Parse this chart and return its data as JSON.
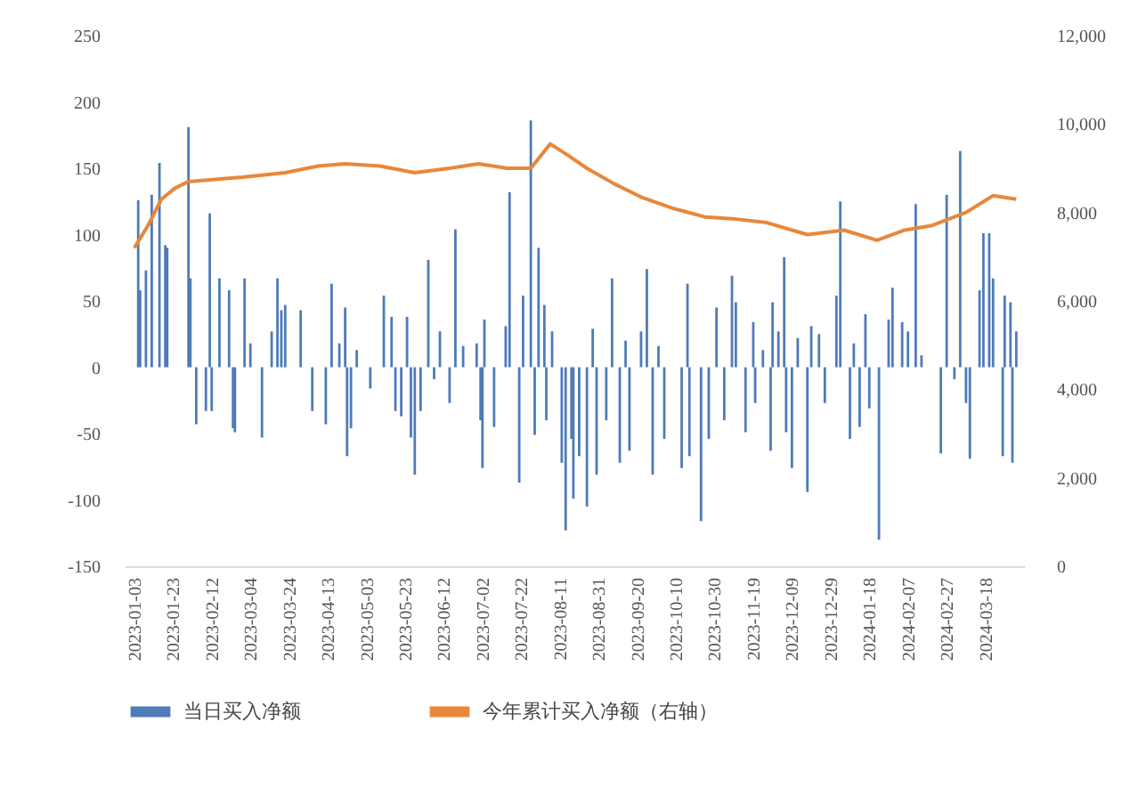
{
  "chart_data": {
    "type": "bar",
    "legend": "bottom",
    "xlim": [
      "2022-12-29",
      "2024-04-07"
    ],
    "xticks": [
      "2023-01-03",
      "2023-01-23",
      "2023-02-12",
      "2023-03-04",
      "2023-03-24",
      "2023-04-13",
      "2023-05-03",
      "2023-05-23",
      "2023-06-12",
      "2023-07-02",
      "2023-07-22",
      "2023-08-11",
      "2023-08-31",
      "2023-09-20",
      "2023-10-10",
      "2023-10-30",
      "2023-11-19",
      "2023-12-09",
      "2023-12-29",
      "2024-01-18",
      "2024-02-07",
      "2024-02-27",
      "2024-03-18"
    ],
    "ylim": [
      -150,
      250
    ],
    "yticks": [
      -150,
      -100,
      -50,
      0,
      50,
      100,
      150,
      200,
      250
    ],
    "y2lim": [
      0,
      12000
    ],
    "y2ticks": [
      0,
      {
        "value": 2000,
        "label": "2,000"
      },
      {
        "value": 4000,
        "label": "4,000"
      },
      {
        "value": 6000,
        "label": "6,000"
      },
      {
        "value": 8000,
        "label": "8,000"
      },
      {
        "value": 10000,
        "label": "10,000"
      },
      {
        "value": 12000,
        "label": "12,000"
      }
    ],
    "series": [
      {
        "name": "当日买入净额",
        "type": "bar",
        "color": "#4f7bb8",
        "x": [
          "2023-01-05",
          "2023-01-06",
          "2023-01-09",
          "2023-01-12",
          "2023-01-16",
          "2023-01-19",
          "2023-01-20",
          "2023-01-31",
          "2023-02-01",
          "2023-02-04",
          "2023-02-09",
          "2023-02-11",
          "2023-02-12",
          "2023-02-16",
          "2023-02-21",
          "2023-02-23",
          "2023-02-24",
          "2023-03-01",
          "2023-03-04",
          "2023-03-10",
          "2023-03-15",
          "2023-03-18",
          "2023-03-20",
          "2023-03-22",
          "2023-03-30",
          "2023-04-05",
          "2023-04-12",
          "2023-04-15",
          "2023-04-19",
          "2023-04-22",
          "2023-04-23",
          "2023-04-25",
          "2023-04-28",
          "2023-05-05",
          "2023-05-12",
          "2023-05-16",
          "2023-05-18",
          "2023-05-21",
          "2023-05-24",
          "2023-05-26",
          "2023-05-28",
          "2023-05-31",
          "2023-06-04",
          "2023-06-07",
          "2023-06-10",
          "2023-06-15",
          "2023-06-18",
          "2023-06-22",
          "2023-06-29",
          "2023-07-01",
          "2023-07-02",
          "2023-07-03",
          "2023-07-08",
          "2023-07-14",
          "2023-07-16",
          "2023-07-21",
          "2023-07-23",
          "2023-07-27",
          "2023-07-29",
          "2023-07-31",
          "2023-08-03",
          "2023-08-04",
          "2023-08-07",
          "2023-08-12",
          "2023-08-14",
          "2023-08-17",
          "2023-08-18",
          "2023-08-21",
          "2023-08-25",
          "2023-08-28",
          "2023-08-30",
          "2023-09-04",
          "2023-09-07",
          "2023-09-11",
          "2023-09-14",
          "2023-09-16",
          "2023-09-22",
          "2023-09-25",
          "2023-09-28",
          "2023-10-01",
          "2023-10-04",
          "2023-10-13",
          "2023-10-16",
          "2023-10-17",
          "2023-10-23",
          "2023-10-27",
          "2023-10-31",
          "2023-11-04",
          "2023-11-08",
          "2023-11-10",
          "2023-11-15",
          "2023-11-19",
          "2023-11-20",
          "2023-11-24",
          "2023-11-28",
          "2023-11-29",
          "2023-12-02",
          "2023-12-05",
          "2023-12-06",
          "2023-12-09",
          "2023-12-12",
          "2023-12-17",
          "2023-12-19",
          "2023-12-23",
          "2023-12-26",
          "2024-01-01",
          "2024-01-03",
          "2024-01-08",
          "2024-01-10",
          "2024-01-13",
          "2024-01-16",
          "2024-01-18",
          "2024-01-23",
          "2024-01-28",
          "2024-01-30",
          "2024-02-04",
          "2024-02-07",
          "2024-02-11",
          "2024-02-14",
          "2024-02-24",
          "2024-02-27",
          "2024-03-02",
          "2024-03-05",
          "2024-03-08",
          "2024-03-10",
          "2024-03-15",
          "2024-03-17",
          "2024-03-20",
          "2024-03-22",
          "2024-03-27",
          "2024-03-28",
          "2024-03-31",
          "2024-04-01",
          "2024-04-03"
        ],
        "values": [
          126,
          58,
          73,
          130,
          154,
          92,
          90,
          181,
          67,
          -43,
          -33,
          116,
          -33,
          67,
          58,
          -46,
          -49,
          67,
          18,
          -53,
          27,
          67,
          43,
          47,
          43,
          -33,
          -43,
          63,
          18,
          45,
          -67,
          -46,
          13,
          -16,
          54,
          38,
          -33,
          -37,
          38,
          -53,
          -81,
          -33,
          81,
          -9,
          27,
          -27,
          104,
          16,
          18,
          -40,
          -76,
          36,
          -45,
          31,
          132,
          -87,
          54,
          186,
          -51,
          90,
          47,
          -40,
          27,
          -72,
          -123,
          -54,
          -99,
          -67,
          -105,
          29,
          -81,
          -40,
          67,
          -72,
          20,
          -63,
          27,
          74,
          -81,
          16,
          -54,
          -76,
          63,
          -67,
          -116,
          -54,
          45,
          -40,
          69,
          49,
          -49,
          34,
          -27,
          13,
          -63,
          49,
          27,
          83,
          -49,
          -76,
          22,
          -94,
          31,
          25,
          -27,
          54,
          125,
          -54,
          18,
          -45,
          40,
          -31,
          -130,
          36,
          60,
          34,
          27,
          123,
          9,
          -65,
          130,
          -9,
          163,
          -27,
          -69,
          58,
          101,
          101,
          67,
          -67,
          54,
          49,
          -72,
          27
        ]
      },
      {
        "name": "今年累计买入净额（右轴）",
        "type": "line",
        "axis": "y2",
        "color": "#e8873a",
        "x": [
          "2023-01-03",
          "2023-01-10",
          "2023-01-17",
          "2023-01-24",
          "2023-01-31",
          "2023-02-14",
          "2023-02-28",
          "2023-03-22",
          "2023-04-08",
          "2023-04-22",
          "2023-05-10",
          "2023-05-28",
          "2023-06-15",
          "2023-06-30",
          "2023-07-15",
          "2023-07-27",
          "2023-08-06",
          "2023-08-15",
          "2023-08-25",
          "2023-09-08",
          "2023-09-22",
          "2023-10-08",
          "2023-10-25",
          "2023-11-10",
          "2023-11-26",
          "2023-12-17",
          "2024-01-05",
          "2024-01-22",
          "2024-02-05",
          "2024-02-19",
          "2024-03-08",
          "2024-03-22",
          "2024-04-03"
        ],
        "values": [
          7200,
          7700,
          8300,
          8550,
          8700,
          8750,
          8800,
          8900,
          9050,
          9100,
          9050,
          8900,
          9000,
          9100,
          9000,
          9000,
          9550,
          9300,
          9000,
          8650,
          8350,
          8100,
          7900,
          7850,
          7770,
          7500,
          7600,
          7370,
          7600,
          7700,
          8000,
          8380,
          8300
        ]
      }
    ]
  }
}
